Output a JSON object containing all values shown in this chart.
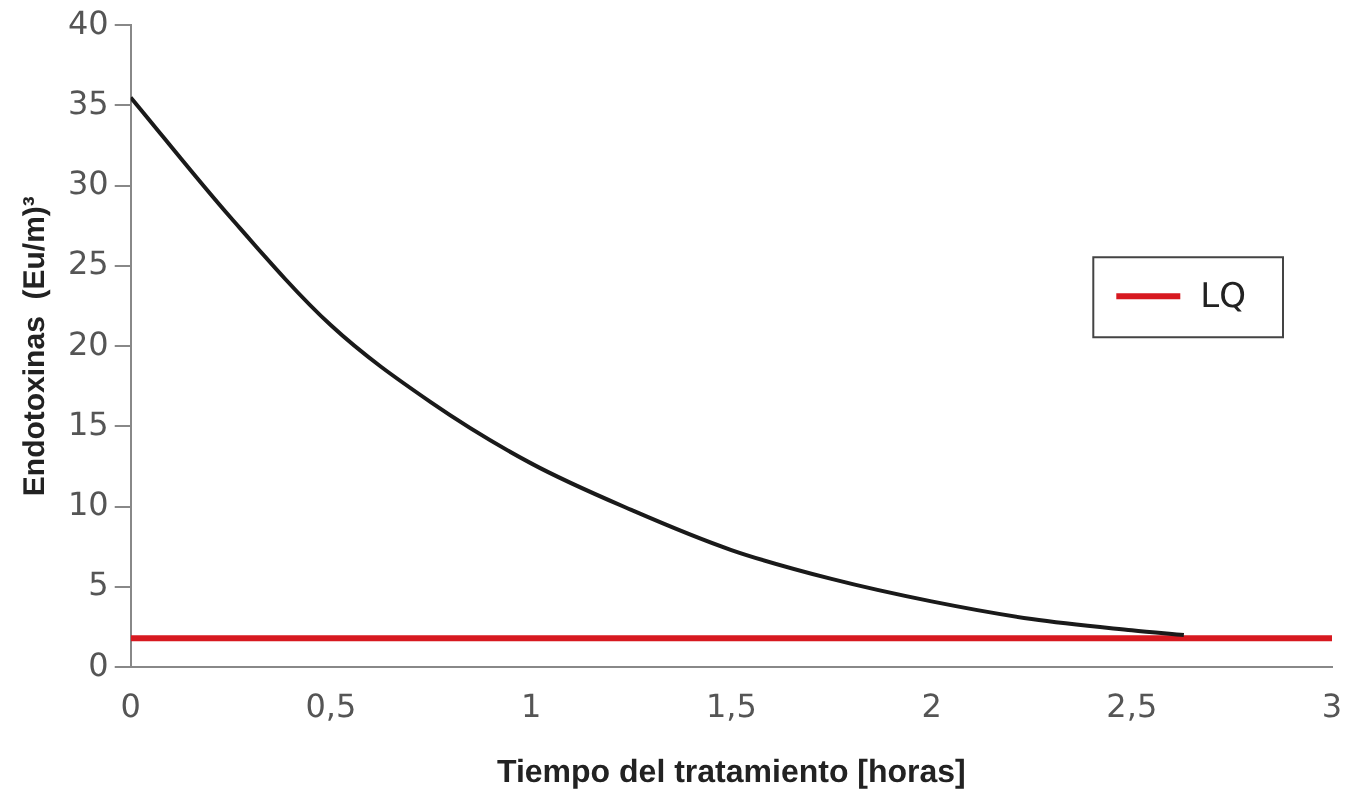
{
  "chart_data": {
    "type": "line",
    "xlabel": "Tiempo del tratamiento [horas]",
    "ylabel": "Endotoxinas  (Eu/m)³",
    "xlim": [
      0,
      3
    ],
    "xticks": [
      0,
      {
        "value": 0.5,
        "label": "0,5"
      },
      1,
      {
        "value": 1.5,
        "label": "1,5"
      },
      2,
      {
        "value": 2.5,
        "label": "2,5"
      },
      3
    ],
    "ylim": [
      0,
      40
    ],
    "yticks": [
      0,
      5,
      10,
      15,
      20,
      25,
      30,
      35,
      40
    ],
    "grid": false,
    "legend": "right",
    "marker": "none",
    "line_style": "solid",
    "series": [
      {
        "color": "#1a1a1a",
        "x": [
          0,
          0.25,
          0.5,
          0.75,
          1,
          1.25,
          1.5,
          1.75,
          2,
          2.25,
          2.5,
          2.63
        ],
        "values": [
          35.5,
          28,
          21.3,
          16.5,
          12.7,
          9.8,
          7.3,
          5.5,
          4.1,
          3.0,
          2.3,
          2.0
        ]
      },
      {
        "name": "LQ",
        "color": "#d71920",
        "x": [
          0,
          3
        ],
        "values": [
          1.8,
          1.8
        ]
      }
    ]
  }
}
